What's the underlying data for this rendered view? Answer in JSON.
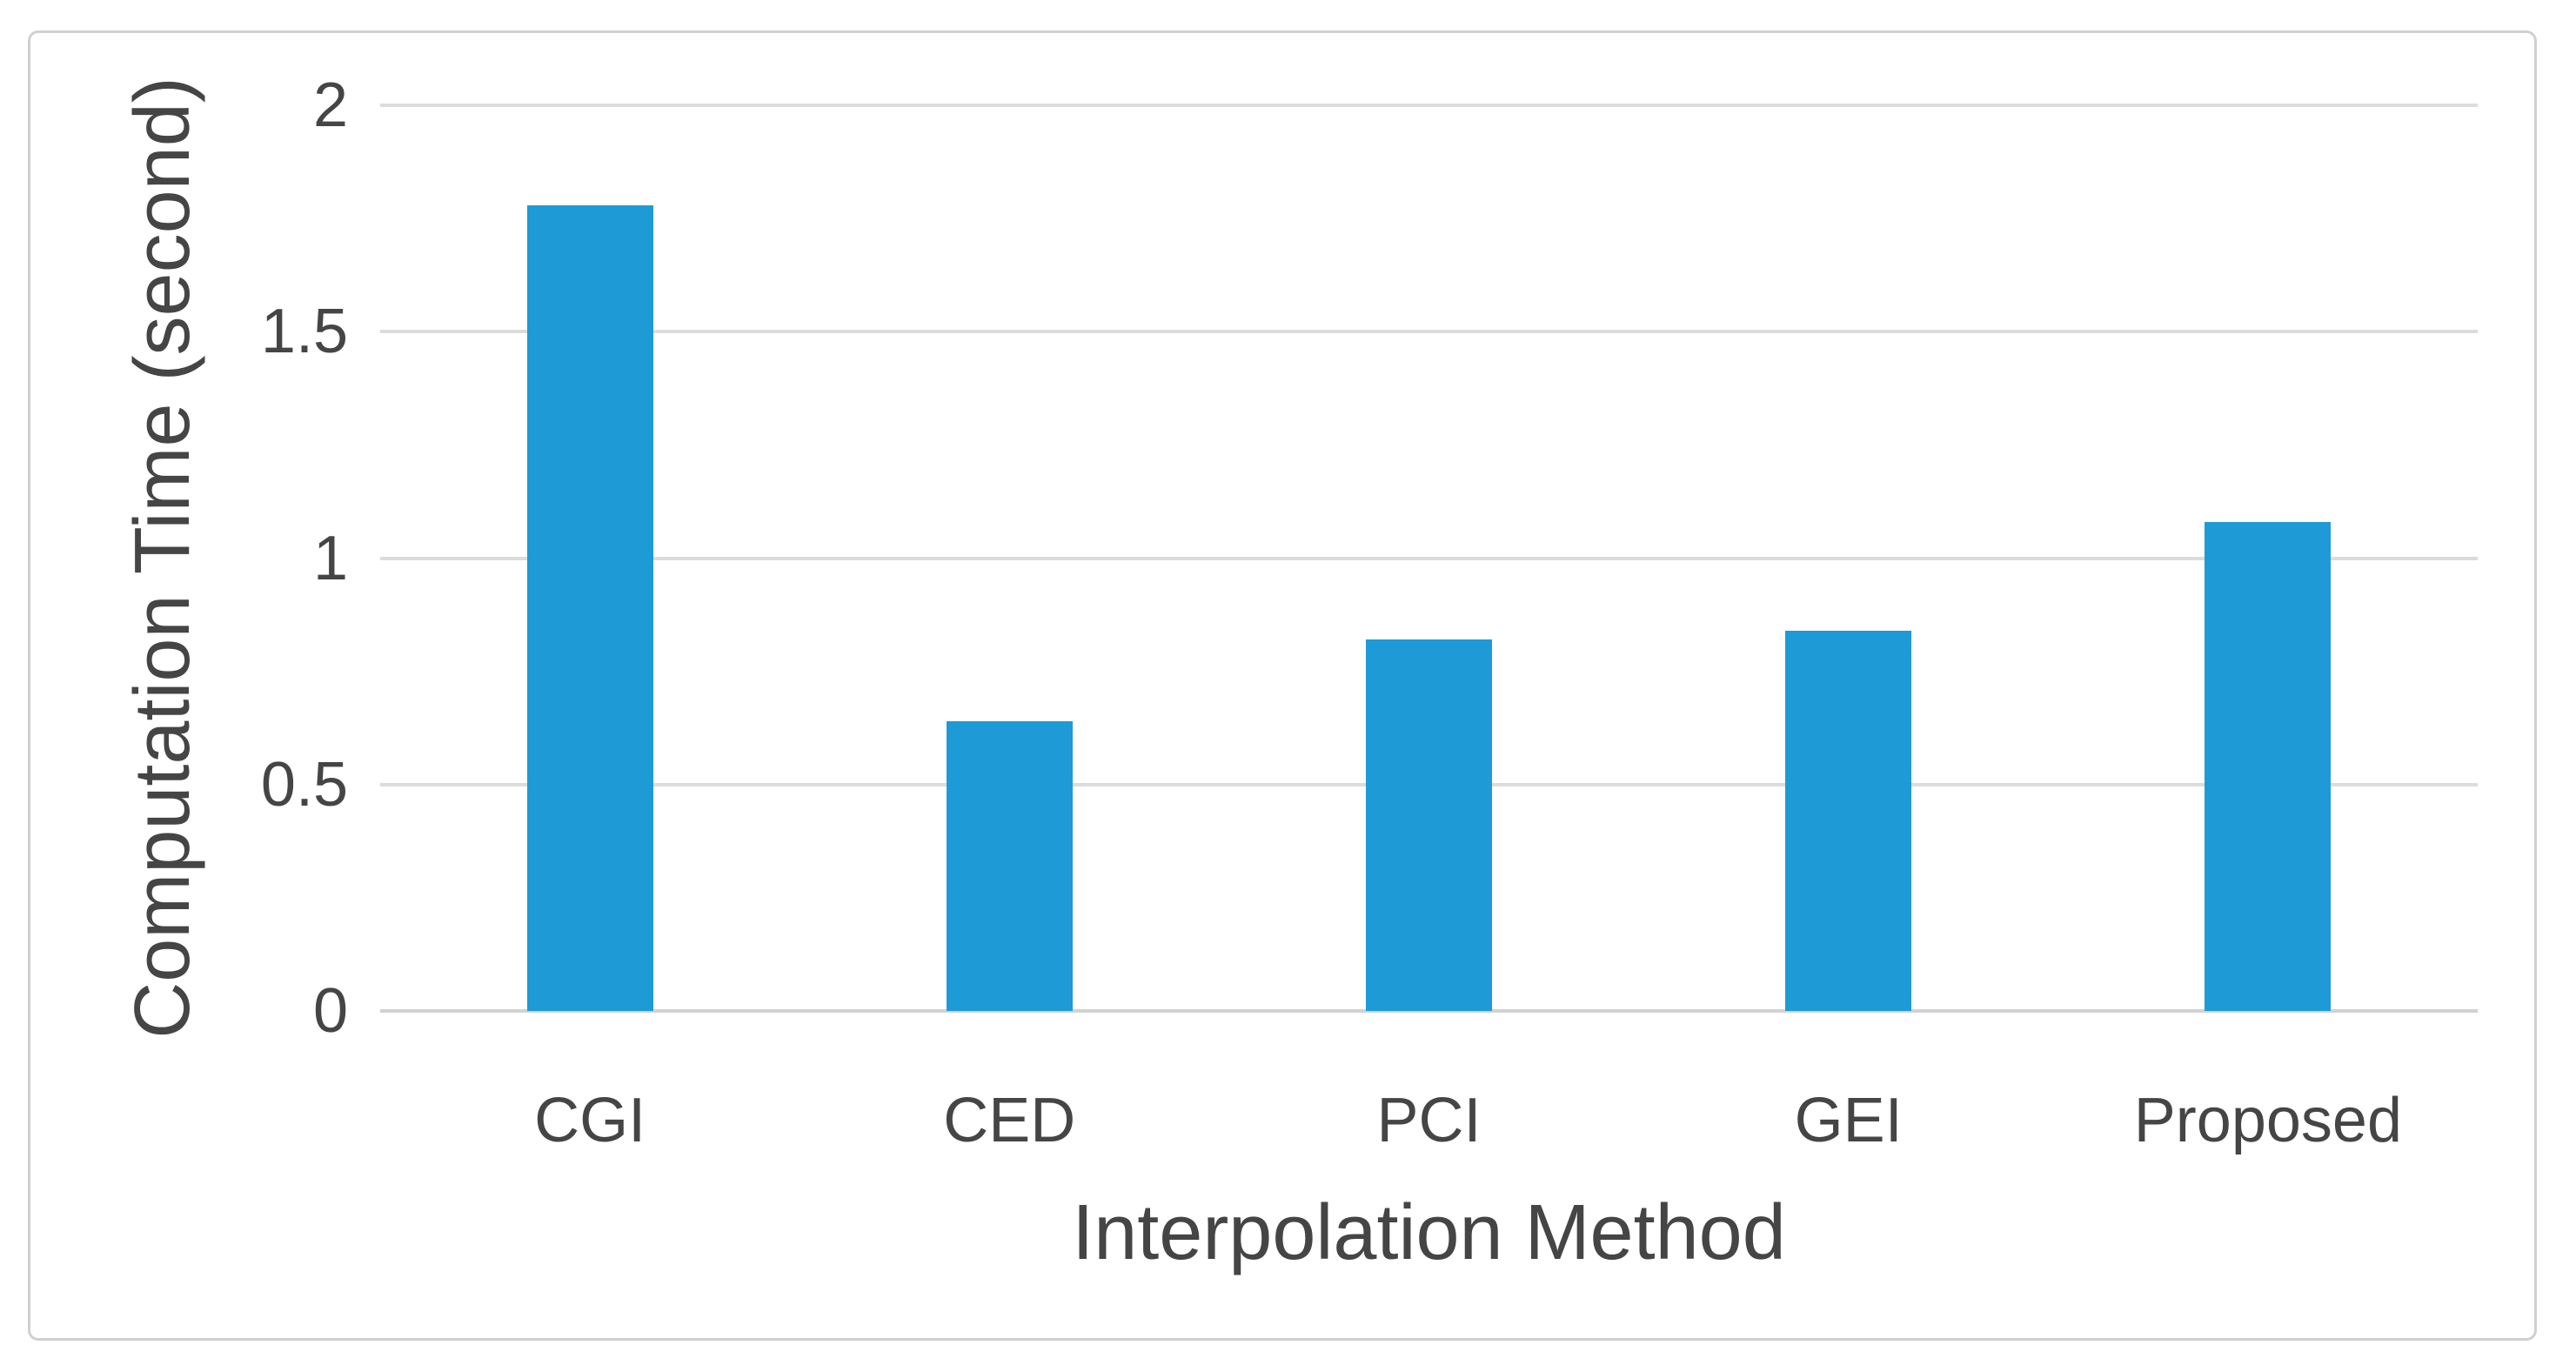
{
  "figure": {
    "background_color": "#ffffff",
    "frame_border_color": "#d0d0d0"
  },
  "chart_data": {
    "type": "bar",
    "title": "",
    "categories": [
      "CGI",
      "CED",
      "PCI",
      "GEI",
      "Proposed"
    ],
    "values": [
      1.78,
      0.64,
      0.82,
      0.84,
      1.08
    ],
    "xlabel": "Interpolation Method",
    "ylabel": "Computation Time (second)",
    "ylim": [
      0,
      2
    ],
    "ytick_step": 0.5,
    "ytick_labels": [
      "0",
      "0.5",
      "1",
      "1.5",
      "2"
    ],
    "bar_color": "#1e9ad7",
    "gridline_color": "#dcdcdc",
    "axis_line_color": "#d2d2d2",
    "text_color": "#454545",
    "grid": "horizontal-only",
    "legend": "none",
    "bar_gap_note": "bars occupy ~30% of category slot width"
  }
}
